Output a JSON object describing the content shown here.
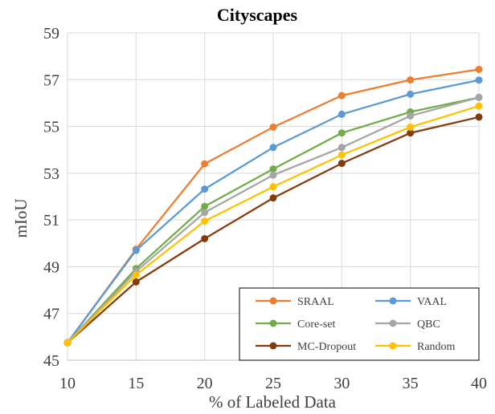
{
  "chart_data": {
    "type": "line",
    "title": "Cityscapes",
    "xlabel": "% of Labeled Data",
    "ylabel": "mIoU",
    "x": [
      10,
      15,
      20,
      25,
      30,
      35,
      40
    ],
    "xlim": [
      10,
      40
    ],
    "xticks": [
      10,
      15,
      20,
      25,
      30,
      35,
      40
    ],
    "ylim": [
      45,
      59
    ],
    "yticks": [
      45,
      47,
      49,
      51,
      53,
      55,
      57,
      59
    ],
    "grid": true,
    "legend_position": "bottom-right",
    "series": [
      {
        "name": "SRAAL",
        "color": "#ed7d31",
        "values": [
          45.75,
          49.75,
          53.4,
          54.97,
          56.32,
          56.99,
          57.44
        ]
      },
      {
        "name": "VAAL",
        "color": "#5b9bd5",
        "values": [
          45.75,
          49.7,
          52.32,
          54.1,
          55.52,
          56.38,
          56.98
        ]
      },
      {
        "name": "Core-set",
        "color": "#70ad47",
        "values": [
          45.75,
          48.92,
          51.58,
          53.18,
          54.72,
          55.62,
          56.24
        ]
      },
      {
        "name": "QBC",
        "color": "#a5a5a5",
        "values": [
          45.75,
          48.8,
          51.32,
          52.92,
          54.1,
          55.45,
          56.24
        ]
      },
      {
        "name": "MC-Dropout",
        "color": "#843c0c",
        "values": [
          45.75,
          48.35,
          50.2,
          51.94,
          53.42,
          54.72,
          55.4
        ]
      },
      {
        "name": "Random",
        "color": "#ffc000",
        "values": [
          45.75,
          48.65,
          50.95,
          52.42,
          53.78,
          54.97,
          55.87
        ]
      }
    ]
  }
}
